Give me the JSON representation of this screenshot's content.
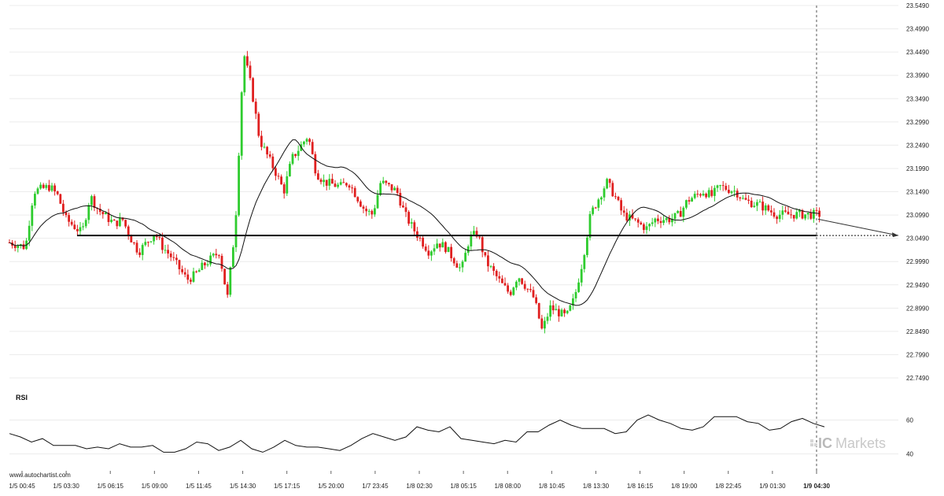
{
  "source": "www.autochartist.com",
  "brand": {
    "prefix": "IC",
    "name": "Markets"
  },
  "colors": {
    "up": "#2ecc2e",
    "down": "#e02020",
    "ma": "#111111",
    "support": "#111111",
    "projection": "#333333",
    "grid": "#ececec"
  },
  "chart_data": [
    {
      "type": "candlestick",
      "title": "",
      "xlabel": "",
      "ylabel": "",
      "ylim": [
        22.749,
        23.549
      ],
      "y_ticks": [
        "23.5490",
        "23.4990",
        "23.4490",
        "23.3990",
        "23.3490",
        "23.2990",
        "23.2490",
        "23.1990",
        "23.1490",
        "23.0990",
        "23.0490",
        "22.9990",
        "22.9490",
        "22.8990",
        "22.8490",
        "22.7990",
        "22.7490"
      ],
      "x_ticks": [
        "1/5 00:45",
        "1/5 03:30",
        "1/5 06:15",
        "1/5 09:00",
        "1/5 11:45",
        "1/5 14:30",
        "1/5 17:15",
        "1/5 20:00",
        "1/7 23:45",
        "1/8 02:30",
        "1/8 05:15",
        "1/8 08:00",
        "1/8 10:45",
        "1/8 13:30",
        "1/8 16:15",
        "1/8 19:00",
        "1/8 22:45",
        "1/9 01:30",
        "1/9 04:30"
      ],
      "highlighted_x_tick": "1/9 04:30",
      "series": [
        {
          "name": "",
          "kind": "candles",
          "description_points": [
            {
              "t": 0,
              "close": 23.04
            },
            {
              "t": 0.02,
              "close": 23.03
            },
            {
              "t": 0.03,
              "close": 23.15
            },
            {
              "t": 0.05,
              "close": 23.16
            },
            {
              "t": 0.06,
              "close": 23.14
            },
            {
              "t": 0.07,
              "close": 23.09
            },
            {
              "t": 0.09,
              "close": 23.06
            },
            {
              "t": 0.1,
              "close": 23.14
            },
            {
              "t": 0.11,
              "close": 23.11
            },
            {
              "t": 0.13,
              "close": 23.08
            },
            {
              "t": 0.14,
              "close": 23.09
            },
            {
              "t": 0.15,
              "close": 23.05
            },
            {
              "t": 0.16,
              "close": 23.02
            },
            {
              "t": 0.18,
              "close": 23.06
            },
            {
              "t": 0.19,
              "close": 23.03
            },
            {
              "t": 0.2,
              "close": 23.01
            },
            {
              "t": 0.22,
              "close": 22.96
            },
            {
              "t": 0.23,
              "close": 22.97
            },
            {
              "t": 0.24,
              "close": 22.99
            },
            {
              "t": 0.26,
              "close": 23.02
            },
            {
              "t": 0.27,
              "close": 22.92
            },
            {
              "t": 0.28,
              "close": 23.08
            },
            {
              "t": 0.29,
              "close": 23.45
            },
            {
              "t": 0.3,
              "close": 23.37
            },
            {
              "t": 0.31,
              "close": 23.26
            },
            {
              "t": 0.33,
              "close": 23.19
            },
            {
              "t": 0.34,
              "close": 23.15
            },
            {
              "t": 0.35,
              "close": 23.22
            },
            {
              "t": 0.37,
              "close": 23.27
            },
            {
              "t": 0.38,
              "close": 23.19
            },
            {
              "t": 0.39,
              "close": 23.17
            },
            {
              "t": 0.41,
              "close": 23.16
            },
            {
              "t": 0.42,
              "close": 23.17
            },
            {
              "t": 0.44,
              "close": 23.11
            },
            {
              "t": 0.45,
              "close": 23.1
            },
            {
              "t": 0.46,
              "close": 23.17
            },
            {
              "t": 0.48,
              "close": 23.15
            },
            {
              "t": 0.49,
              "close": 23.1
            },
            {
              "t": 0.5,
              "close": 23.07
            },
            {
              "t": 0.52,
              "close": 23.02
            },
            {
              "t": 0.53,
              "close": 23.04
            },
            {
              "t": 0.54,
              "close": 23.03
            },
            {
              "t": 0.56,
              "close": 22.98
            },
            {
              "t": 0.57,
              "close": 23.05
            },
            {
              "t": 0.58,
              "close": 23.06
            },
            {
              "t": 0.59,
              "close": 23.0
            },
            {
              "t": 0.61,
              "close": 22.95
            },
            {
              "t": 0.62,
              "close": 22.93
            },
            {
              "t": 0.63,
              "close": 22.97
            },
            {
              "t": 0.65,
              "close": 22.92
            },
            {
              "t": 0.66,
              "close": 22.85
            },
            {
              "t": 0.67,
              "close": 22.9
            },
            {
              "t": 0.69,
              "close": 22.88
            },
            {
              "t": 0.7,
              "close": 22.92
            },
            {
              "t": 0.71,
              "close": 23.0
            },
            {
              "t": 0.72,
              "close": 23.1
            },
            {
              "t": 0.74,
              "close": 23.17
            },
            {
              "t": 0.75,
              "close": 23.14
            },
            {
              "t": 0.76,
              "close": 23.1
            },
            {
              "t": 0.78,
              "close": 23.08
            },
            {
              "t": 0.79,
              "close": 23.07
            },
            {
              "t": 0.8,
              "close": 23.09
            },
            {
              "t": 0.82,
              "close": 23.09
            },
            {
              "t": 0.83,
              "close": 23.1
            },
            {
              "t": 0.84,
              "close": 23.13
            },
            {
              "t": 0.86,
              "close": 23.15
            },
            {
              "t": 0.87,
              "close": 23.14
            },
            {
              "t": 0.88,
              "close": 23.16
            },
            {
              "t": 0.9,
              "close": 23.15
            },
            {
              "t": 0.91,
              "close": 23.13
            },
            {
              "t": 0.93,
              "close": 23.12
            },
            {
              "t": 0.95,
              "close": 23.1
            }
          ]
        },
        {
          "name": "",
          "kind": "moving-average"
        },
        {
          "name": "",
          "kind": "support-line",
          "value": 23.055
        },
        {
          "name": "",
          "kind": "projection",
          "from": 23.09,
          "to": 23.055
        }
      ]
    },
    {
      "type": "line",
      "title": "RSI",
      "ylim": [
        30,
        70
      ],
      "y_ticks": [
        "60",
        "40"
      ],
      "series": [
        {
          "name": "",
          "values": [
            52,
            50,
            47,
            49,
            45,
            45,
            45,
            43,
            44,
            43,
            46,
            44,
            44,
            45,
            41,
            41,
            43,
            47,
            46,
            42,
            44,
            48,
            43,
            41,
            44,
            48,
            45,
            44,
            44,
            43,
            42,
            45,
            49,
            52,
            50,
            48,
            50,
            56,
            54,
            53,
            56,
            49,
            48,
            47,
            46,
            48,
            47,
            53,
            53,
            57,
            60,
            57,
            55,
            55,
            55,
            52,
            53,
            60,
            63,
            60,
            58,
            55,
            54,
            56,
            62,
            62,
            62,
            59,
            58,
            54,
            55,
            59,
            61,
            58,
            56
          ]
        }
      ]
    }
  ]
}
